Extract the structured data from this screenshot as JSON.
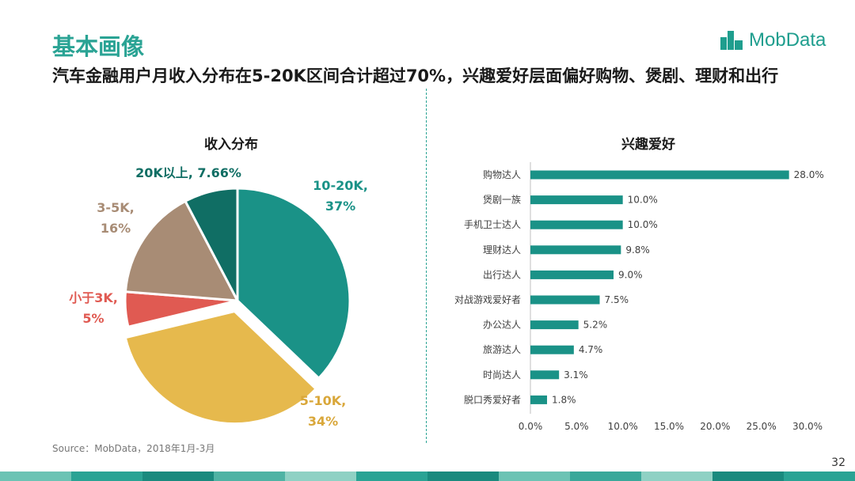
{
  "title": "基本画像",
  "subtitle": "汽车金融用户月收入分布在5-20K区间合计超过70%，兴趣爱好层面偏好购物、煲剧、理财和出行",
  "logo": {
    "text": "MobData",
    "icon": "bar-blocks-icon"
  },
  "source": "Source：MobData，2018年1月-3月",
  "page_number": "32",
  "colors": {
    "accent": "#2aa394",
    "teal": "#1a9287",
    "gold": "#e6b94d",
    "red": "#e05a52",
    "taupe": "#a88c75",
    "dark_teal": "#106e64"
  },
  "chart_data": [
    {
      "type": "pie",
      "title": "收入分布",
      "slices": [
        {
          "name": "10-20K,",
          "value_label": "37%",
          "value": 37,
          "color": "#1a9287"
        },
        {
          "name": "5-10K,",
          "value_label": "34%",
          "value": 34,
          "color": "#e6b94d",
          "exploded": true
        },
        {
          "name": "小于3K,",
          "value_label": "5%",
          "value": 5,
          "color": "#e05a52"
        },
        {
          "name": "3-5K,",
          "value_label": "16%",
          "value": 16,
          "color": "#a88c75"
        },
        {
          "name": "20K以上,",
          "value_label": "7.66%",
          "value": 7.66,
          "color": "#106e64"
        }
      ],
      "label_colors": {
        "10-20K": "#1a9287",
        "5-10K": "#d9a73a",
        "小于3K": "#e05a52",
        "3-5K": "#a88c75",
        "20K以上": "#106e64"
      }
    },
    {
      "type": "bar",
      "orientation": "horizontal",
      "title": "兴趣爱好",
      "categories": [
        "购物达人",
        "煲剧一族",
        "手机卫士达人",
        "理财达人",
        "出行达人",
        "对战游戏爱好者",
        "办公达人",
        "旅游达人",
        "时尚达人",
        "脱口秀爱好者"
      ],
      "values": [
        28.0,
        10.0,
        10.0,
        9.8,
        9.0,
        7.5,
        5.2,
        4.7,
        3.1,
        1.8
      ],
      "value_labels": [
        "28.0%",
        "10.0%",
        "10.0%",
        "9.8%",
        "9.0%",
        "7.5%",
        "5.2%",
        "4.7%",
        "3.1%",
        "1.8%"
      ],
      "xlim": [
        0,
        30
      ],
      "xticks": [
        "0.0%",
        "5.0%",
        "10.0%",
        "15.0%",
        "20.0%",
        "25.0%",
        "30.0%"
      ],
      "bar_color": "#1a9287",
      "grid": false
    }
  ],
  "footer_colors": [
    "#6cc3b4",
    "#2aa394",
    "#1a8a7e",
    "#4fb3a4",
    "#8fd1c4",
    "#2aa394",
    "#1a8a7e",
    "#6cc3b4",
    "#3aa89a",
    "#8fd1c4",
    "#1a8a7e",
    "#2aa394"
  ]
}
